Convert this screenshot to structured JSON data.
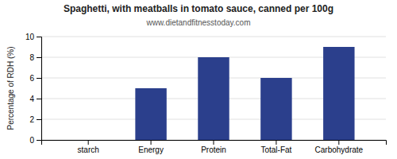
{
  "chart_data": {
    "type": "bar",
    "title": "Spaghetti, with meatballs in tomato sauce, canned per 100g",
    "subtitle": "www.dietandfitnesstoday.com",
    "categories": [
      "starch",
      "Energy",
      "Protein",
      "Total-Fat",
      "Carbohydrate"
    ],
    "values": [
      0,
      5,
      8,
      6,
      9
    ],
    "color": "#2b3f8c",
    "ylabel": "Percentage of RDH (%)",
    "ylim": [
      0,
      10
    ],
    "yticks": [
      0,
      2,
      4,
      6,
      8,
      10
    ],
    "grid": true
  }
}
